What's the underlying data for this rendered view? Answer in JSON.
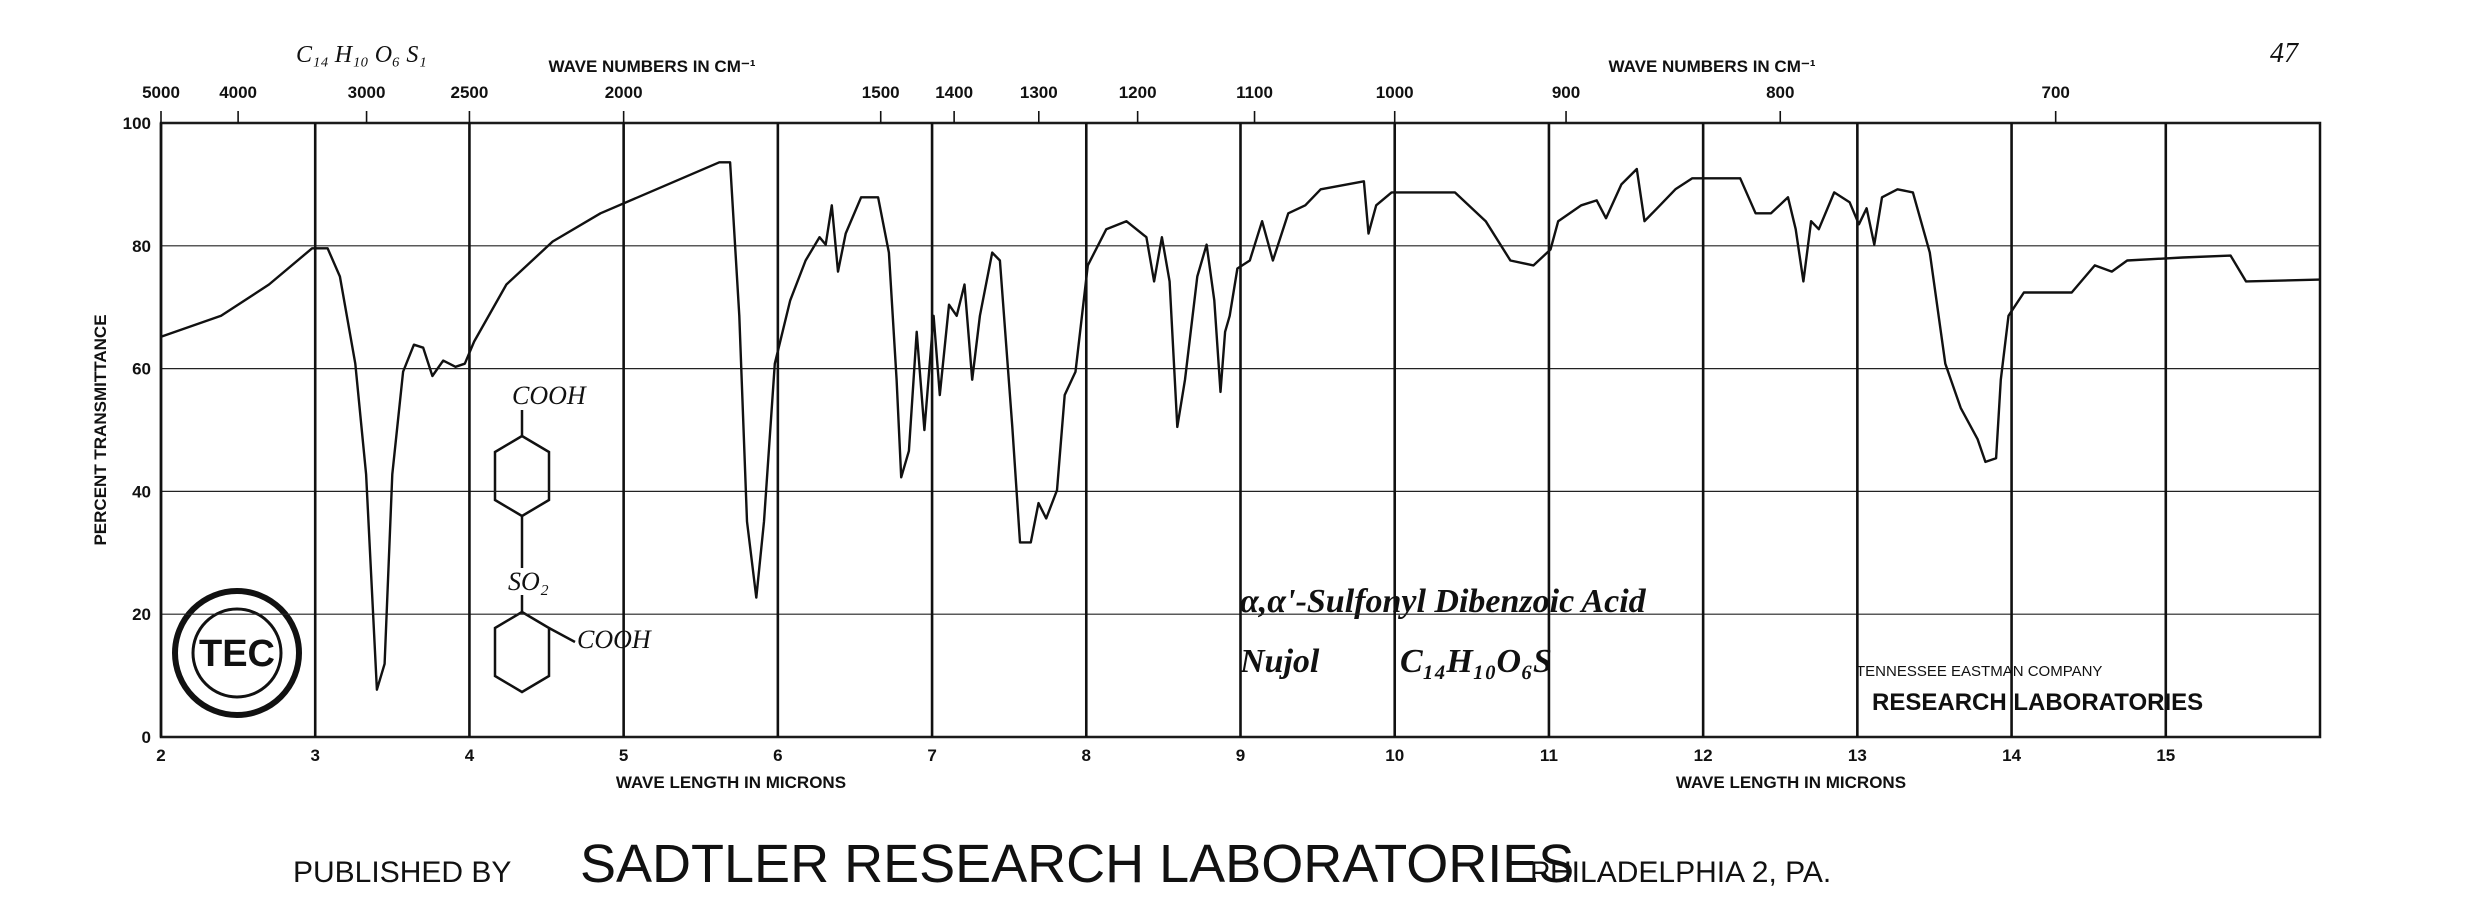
{
  "chart_data": {
    "type": "line",
    "formula_note": "C₁₄ H₁₀ O₆ S₁",
    "page_number": "47",
    "x2_label": "WAVE NUMBERS IN CM⁻¹",
    "x2_label_right": "WAVE NUMBERS IN CM⁻¹",
    "x_label": "WAVE LENGTH IN MICRONS",
    "x_label_right": "WAVE LENGTH IN MICRONS",
    "y_label": "PERCENT TRANSMITTANCE",
    "color": "#111111",
    "grid": true,
    "xlim": [
      2,
      16
    ],
    "xticks": [
      2,
      3,
      4,
      5,
      6,
      7,
      8,
      9,
      10,
      11,
      12,
      13,
      14,
      15
    ],
    "ylim": [
      0,
      100
    ],
    "yticks": [
      0,
      20,
      40,
      60,
      80,
      100
    ],
    "x2ticks": [
      {
        "value": 2,
        "label": "5000"
      },
      {
        "value": 2.5,
        "label": "4000"
      },
      {
        "value": 3.333,
        "label": "3000"
      },
      {
        "value": 4,
        "label": "2500"
      },
      {
        "value": 5,
        "label": "2000"
      },
      {
        "value": 6.667,
        "label": "1500"
      },
      {
        "value": 7.143,
        "label": "1400"
      },
      {
        "value": 7.692,
        "label": "1300"
      },
      {
        "value": 8.333,
        "label": "1200"
      },
      {
        "value": 9.091,
        "label": "1100"
      },
      {
        "value": 10,
        "label": "1000"
      },
      {
        "value": 11.111,
        "label": "900"
      },
      {
        "value": 12.5,
        "label": "800"
      },
      {
        "value": 14.286,
        "label": "700"
      }
    ],
    "x": [
      2.0,
      2.39,
      2.7,
      2.98,
      3.08,
      3.16,
      3.26,
      3.33,
      3.4,
      3.45,
      3.5,
      3.57,
      3.64,
      3.7,
      3.76,
      3.83,
      3.91,
      3.97,
      4.03,
      4.24,
      4.54,
      4.85,
      5.26,
      5.62,
      5.69,
      5.75,
      5.8,
      5.86,
      5.91,
      5.98,
      6.08,
      6.18,
      6.27,
      6.31,
      6.35,
      6.39,
      6.44,
      6.54,
      6.65,
      6.72,
      6.77,
      6.8,
      6.85,
      6.9,
      6.95,
      7.01,
      7.05,
      7.11,
      7.16,
      7.21,
      7.26,
      7.31,
      7.39,
      7.44,
      7.52,
      7.57,
      7.64,
      7.69,
      7.74,
      7.81,
      7.86,
      7.93,
      8.01,
      8.13,
      8.26,
      8.39,
      8.44,
      8.49,
      8.54,
      8.59,
      8.64,
      8.72,
      8.78,
      8.83,
      8.87,
      8.9,
      8.93,
      8.98,
      9.06,
      9.14,
      9.21,
      9.31,
      9.42,
      9.52,
      9.8,
      9.83,
      9.88,
      9.98,
      10.39,
      10.59,
      10.75,
      10.9,
      11.01,
      11.06,
      11.21,
      11.31,
      11.37,
      11.47,
      11.57,
      11.62,
      11.72,
      11.82,
      11.93,
      12.24,
      12.34,
      12.44,
      12.55,
      12.6,
      12.65,
      12.7,
      12.75,
      12.85,
      12.95,
      13.01,
      13.06,
      13.11,
      13.16,
      13.26,
      13.36,
      13.47,
      13.57,
      13.67,
      13.78,
      13.83,
      13.9,
      13.93,
      13.98,
      14.08,
      14.39,
      14.54,
      14.65,
      14.75,
      15.11,
      15.42,
      15.52,
      16.0
    ],
    "values": [
      65.2,
      68.6,
      73.7,
      79.6,
      79.6,
      75,
      60.8,
      42.8,
      7.7,
      11.9,
      42.8,
      59.5,
      63.9,
      63.4,
      58.8,
      61.3,
      60.3,
      60.8,
      64.4,
      73.7,
      80.7,
      85.3,
      89.7,
      93.6,
      93.6,
      68.6,
      35.1,
      22.7,
      35.1,
      60.8,
      71.1,
      77.6,
      81.4,
      80.2,
      86.6,
      75.8,
      82,
      87.9,
      87.9,
      78.9,
      58.2,
      42.3,
      46.6,
      66,
      50,
      68.6,
      55.7,
      70.4,
      68.6,
      73.7,
      58.2,
      68.6,
      78.9,
      77.6,
      50.5,
      31.7,
      31.7,
      38.1,
      35.6,
      40.2,
      55.7,
      59.5,
      76.8,
      82.7,
      84,
      81.4,
      74.2,
      81.4,
      74.2,
      50.5,
      58.2,
      75,
      80.2,
      71.1,
      56.2,
      66,
      68.6,
      76.3,
      77.6,
      84,
      77.6,
      85.3,
      86.6,
      89.2,
      90.5,
      82,
      86.6,
      88.7,
      88.7,
      84,
      77.6,
      76.8,
      79.4,
      84,
      86.6,
      87.4,
      84.5,
      90,
      92.5,
      84,
      86.6,
      89.2,
      91,
      91,
      85.3,
      85.3,
      87.9,
      82.7,
      74.2,
      84,
      82.7,
      88.7,
      87.1,
      83.5,
      86.1,
      80.2,
      87.9,
      89.2,
      88.7,
      78.9,
      60.8,
      53.6,
      48.5,
      44.8,
      45.4,
      58.2,
      68.6,
      72.4,
      72.4,
      76.8,
      75.8,
      77.6,
      78.1,
      78.4,
      74.2,
      74.5
    ]
  },
  "structure": {
    "top_group": "COOH",
    "bridge": "SO₂",
    "bottom_group": "COOH"
  },
  "annotations": {
    "compound": "α,α'-Sulfonyl Dibenzoic Acid",
    "medium": "Nujol",
    "formula": "C₁₄H₁₀O₆S"
  },
  "logo": {
    "text": "TEC"
  },
  "stamp": {
    "company": "TENNESSEE EASTMAN COMPANY",
    "lab": "RESEARCH LABORATORIES"
  },
  "footer": {
    "prefix": "PUBLISHED BY",
    "publisher": "SADTLER RESEARCH LABORATORIES",
    "city": "PHILADELPHIA 2, PA."
  }
}
